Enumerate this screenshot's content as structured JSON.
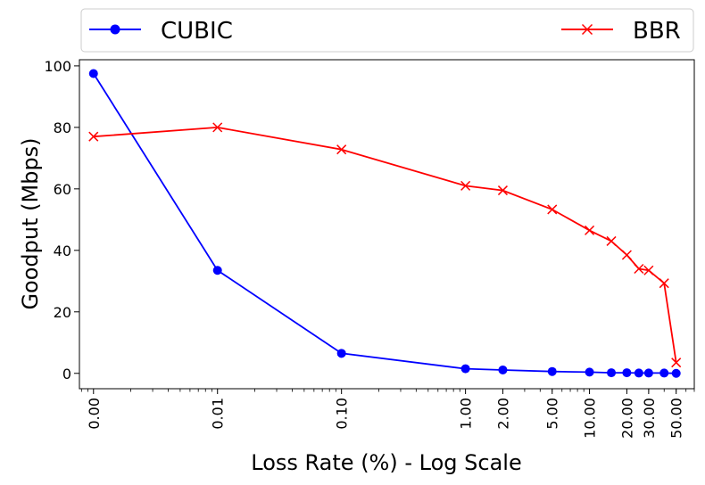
{
  "chart_data": {
    "type": "line",
    "xlabel": "Loss Rate (%) - Log Scale",
    "ylabel": "Goodput (Mbps)",
    "xscale": "log",
    "x": [
      0.001,
      0.01,
      0.1,
      1,
      2,
      5,
      10,
      15,
      20,
      25,
      30,
      40,
      50
    ],
    "xticks": [
      0.001,
      0.01,
      0.1,
      1,
      2,
      5,
      10,
      20,
      30,
      50
    ],
    "xtick_labels": [
      "0.00",
      "0.01",
      "0.10",
      "1.00",
      "2.00",
      "5.00",
      "10.00",
      "20.00",
      "30.00",
      "50.00"
    ],
    "xlim": [
      0.00077,
      70
    ],
    "yticks": [
      0,
      20,
      40,
      60,
      80,
      100
    ],
    "ylim": [
      -5,
      102
    ],
    "grid": false,
    "legend_position": "top",
    "series": [
      {
        "name": "CUBIC",
        "color": "#0000ff",
        "marker": "circle",
        "values": [
          97.5,
          33.5,
          6.5,
          1.5,
          1.1,
          0.6,
          0.4,
          0.2,
          0.2,
          0.1,
          0.1,
          0.1,
          0.0
        ]
      },
      {
        "name": "BBR",
        "color": "#ff0000",
        "marker": "x",
        "values": [
          77,
          80,
          72.8,
          61,
          59.5,
          53.3,
          46.5,
          43,
          38.5,
          34,
          33.5,
          29.3,
          3.5
        ]
      }
    ]
  }
}
